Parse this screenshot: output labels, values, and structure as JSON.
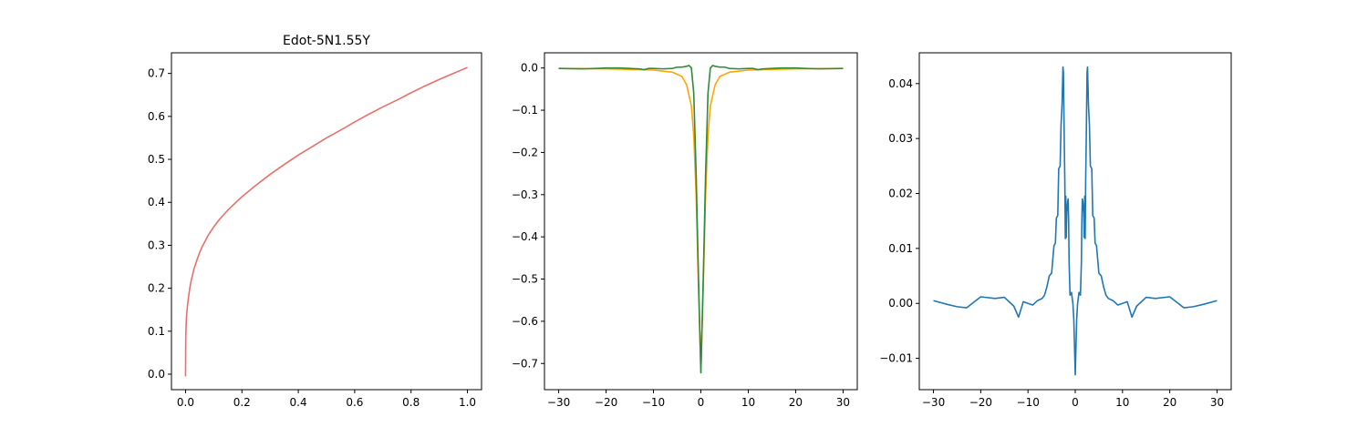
{
  "chart_data": [
    {
      "type": "line",
      "title": "Edot-5N1.55Y",
      "xlabel": "",
      "ylabel": "",
      "xlim": [
        -0.05,
        1.05
      ],
      "ylim": [
        -0.036,
        0.748
      ],
      "xticks": [
        0.0,
        0.2,
        0.4,
        0.6,
        0.8,
        1.0
      ],
      "xtick_labels": [
        "0.0",
        "0.2",
        "0.4",
        "0.6",
        "0.8",
        "1.0"
      ],
      "yticks": [
        0.0,
        0.1,
        0.2,
        0.3,
        0.4,
        0.5,
        0.6,
        0.7
      ],
      "ytick_labels": [
        "0.0",
        "0.1",
        "0.2",
        "0.3",
        "0.4",
        "0.5",
        "0.6",
        "0.7"
      ],
      "grid": false,
      "series": [
        {
          "color": "#e8706a",
          "x": [
            0.0,
            0.0005,
            0.001,
            0.002,
            0.004,
            0.007,
            0.01,
            0.015,
            0.02,
            0.03,
            0.04,
            0.05,
            0.06,
            0.08,
            0.1,
            0.12,
            0.15,
            0.2,
            0.25,
            0.3,
            0.35,
            0.4,
            0.45,
            0.5,
            0.55,
            0.6,
            0.65,
            0.7,
            0.75,
            0.8,
            0.85,
            0.9,
            0.95,
            1.0
          ],
          "y": [
            -0.005,
            0.06,
            0.09,
            0.115,
            0.14,
            0.16,
            0.177,
            0.2,
            0.218,
            0.245,
            0.265,
            0.283,
            0.298,
            0.323,
            0.343,
            0.36,
            0.382,
            0.413,
            0.44,
            0.465,
            0.488,
            0.51,
            0.53,
            0.55,
            0.568,
            0.587,
            0.605,
            0.622,
            0.638,
            0.655,
            0.671,
            0.686,
            0.7,
            0.714
          ]
        }
      ]
    },
    {
      "type": "line",
      "title": "",
      "xlabel": "",
      "ylabel": "",
      "xlim": [
        -33,
        33
      ],
      "ylim": [
        -0.762,
        0.036
      ],
      "xticks": [
        -30,
        -20,
        -10,
        0,
        10,
        20,
        30
      ],
      "xtick_labels": [
        "−30",
        "−20",
        "−10",
        "0",
        "10",
        "20",
        "30"
      ],
      "yticks": [
        0.0,
        -0.1,
        -0.2,
        -0.3,
        -0.4,
        -0.5,
        -0.6,
        -0.7
      ],
      "ytick_labels": [
        "0.0",
        "−0.1",
        "−0.2",
        "−0.3",
        "−0.4",
        "−0.5",
        "−0.6",
        "−0.7"
      ],
      "grid": false,
      "series": [
        {
          "color": "#ffa500",
          "x": [
            -30,
            -20,
            -10,
            -6,
            -4,
            -3,
            -2,
            -1.5,
            -1,
            -0.5,
            0,
            0.5,
            1,
            1.5,
            2,
            3,
            4,
            6,
            10,
            20,
            30
          ],
          "y": [
            -0.001,
            -0.002,
            -0.005,
            -0.01,
            -0.02,
            -0.04,
            -0.09,
            -0.16,
            -0.3,
            -0.52,
            -0.72,
            -0.52,
            -0.3,
            -0.16,
            -0.09,
            -0.04,
            -0.02,
            -0.01,
            -0.005,
            -0.002,
            -0.001
          ]
        },
        {
          "color": "#2e8b3a",
          "x": [
            -30,
            -25,
            -22,
            -20,
            -17,
            -15,
            -13,
            -12,
            -11,
            -10,
            -8,
            -6,
            -5,
            -4,
            -3,
            -2.5,
            -2,
            -1.5,
            -1,
            -0.5,
            0,
            0.5,
            1,
            1.5,
            2,
            2.5,
            3,
            4,
            5,
            6,
            8,
            10,
            11,
            12,
            13,
            15,
            17,
            20,
            22,
            25,
            30
          ],
          "y": [
            -0.001,
            -0.002,
            -0.001,
            0.0,
            0.0,
            -0.001,
            -0.002,
            -0.004,
            -0.001,
            -0.001,
            -0.002,
            -0.001,
            0.002,
            0.002,
            0.004,
            0.006,
            0.0,
            -0.06,
            -0.25,
            -0.5,
            -0.722,
            -0.5,
            -0.25,
            -0.06,
            0.0,
            0.006,
            0.004,
            0.002,
            0.002,
            -0.001,
            -0.002,
            -0.001,
            -0.001,
            -0.004,
            -0.002,
            -0.001,
            0.0,
            0.0,
            -0.001,
            -0.002,
            -0.001
          ]
        }
      ]
    },
    {
      "type": "line",
      "title": "",
      "xlabel": "",
      "ylabel": "",
      "xlim": [
        -33,
        33
      ],
      "ylim": [
        -0.0157,
        0.0456
      ],
      "xticks": [
        -30,
        -20,
        -10,
        0,
        10,
        20,
        30
      ],
      "xtick_labels": [
        "−30",
        "−20",
        "−10",
        "0",
        "10",
        "20",
        "30"
      ],
      "yticks": [
        -0.01,
        0.0,
        0.01,
        0.02,
        0.03,
        0.04
      ],
      "ytick_labels": [
        "−0.01",
        "0.00",
        "0.01",
        "0.02",
        "0.03",
        "0.04"
      ],
      "grid": false,
      "series": [
        {
          "color": "#1f77b4",
          "x": [
            -30,
            -27,
            -25,
            -23,
            -20,
            -17,
            -15,
            -13,
            -12,
            -11,
            -10,
            -9,
            -8,
            -7,
            -6.5,
            -6,
            -5.5,
            -5,
            -4.8,
            -4.5,
            -4.2,
            -4,
            -3.7,
            -3.5,
            -3.2,
            -3,
            -2.8,
            -2.6,
            -2.5,
            -2.4,
            -2.3,
            -2.2,
            -2.1,
            -2,
            -1.9,
            -1.8,
            -1.7,
            -1.6,
            -1.5,
            -1.4,
            -1.3,
            -1.1,
            -0.8,
            -0.5,
            -0.3,
            0,
            0.3,
            0.5,
            0.8,
            1.1,
            1.3,
            1.4,
            1.5,
            1.6,
            1.7,
            1.8,
            1.9,
            2,
            2.1,
            2.2,
            2.3,
            2.4,
            2.5,
            2.6,
            2.8,
            3,
            3.2,
            3.5,
            3.7,
            4,
            4.2,
            4.5,
            4.8,
            5,
            5.5,
            6,
            6.5,
            7,
            8,
            9,
            10,
            11,
            12,
            13,
            15,
            17,
            20,
            23,
            25,
            27,
            30
          ],
          "y": [
            0.0005,
            -0.0002,
            -0.0006,
            -0.0008,
            0.0012,
            0.0009,
            0.0011,
            -0.0005,
            -0.0025,
            0.0003,
            0.0,
            -0.0003,
            0.0005,
            0.0009,
            0.0015,
            0.003,
            0.005,
            0.0055,
            0.0075,
            0.0105,
            0.011,
            0.0155,
            0.016,
            0.0245,
            0.025,
            0.0325,
            0.036,
            0.043,
            0.042,
            0.035,
            0.028,
            0.022,
            0.0118,
            0.0195,
            0.012,
            0.0165,
            0.0175,
            0.0185,
            0.019,
            0.015,
            0.0075,
            0.0015,
            0.002,
            0.0,
            -0.003,
            -0.013,
            -0.003,
            0.0,
            0.002,
            0.0015,
            0.0075,
            0.015,
            0.019,
            0.0185,
            0.0175,
            0.0165,
            0.012,
            0.0195,
            0.0118,
            0.022,
            0.028,
            0.035,
            0.042,
            0.043,
            0.036,
            0.0325,
            0.025,
            0.0245,
            0.016,
            0.0155,
            0.011,
            0.0105,
            0.0075,
            0.0055,
            0.005,
            0.003,
            0.0015,
            0.0009,
            0.0005,
            -0.0003,
            0.0,
            0.0003,
            -0.0025,
            -0.0005,
            0.0011,
            0.0009,
            0.0012,
            -0.0008,
            -0.0006,
            -0.0002,
            0.0005
          ]
        }
      ]
    }
  ]
}
